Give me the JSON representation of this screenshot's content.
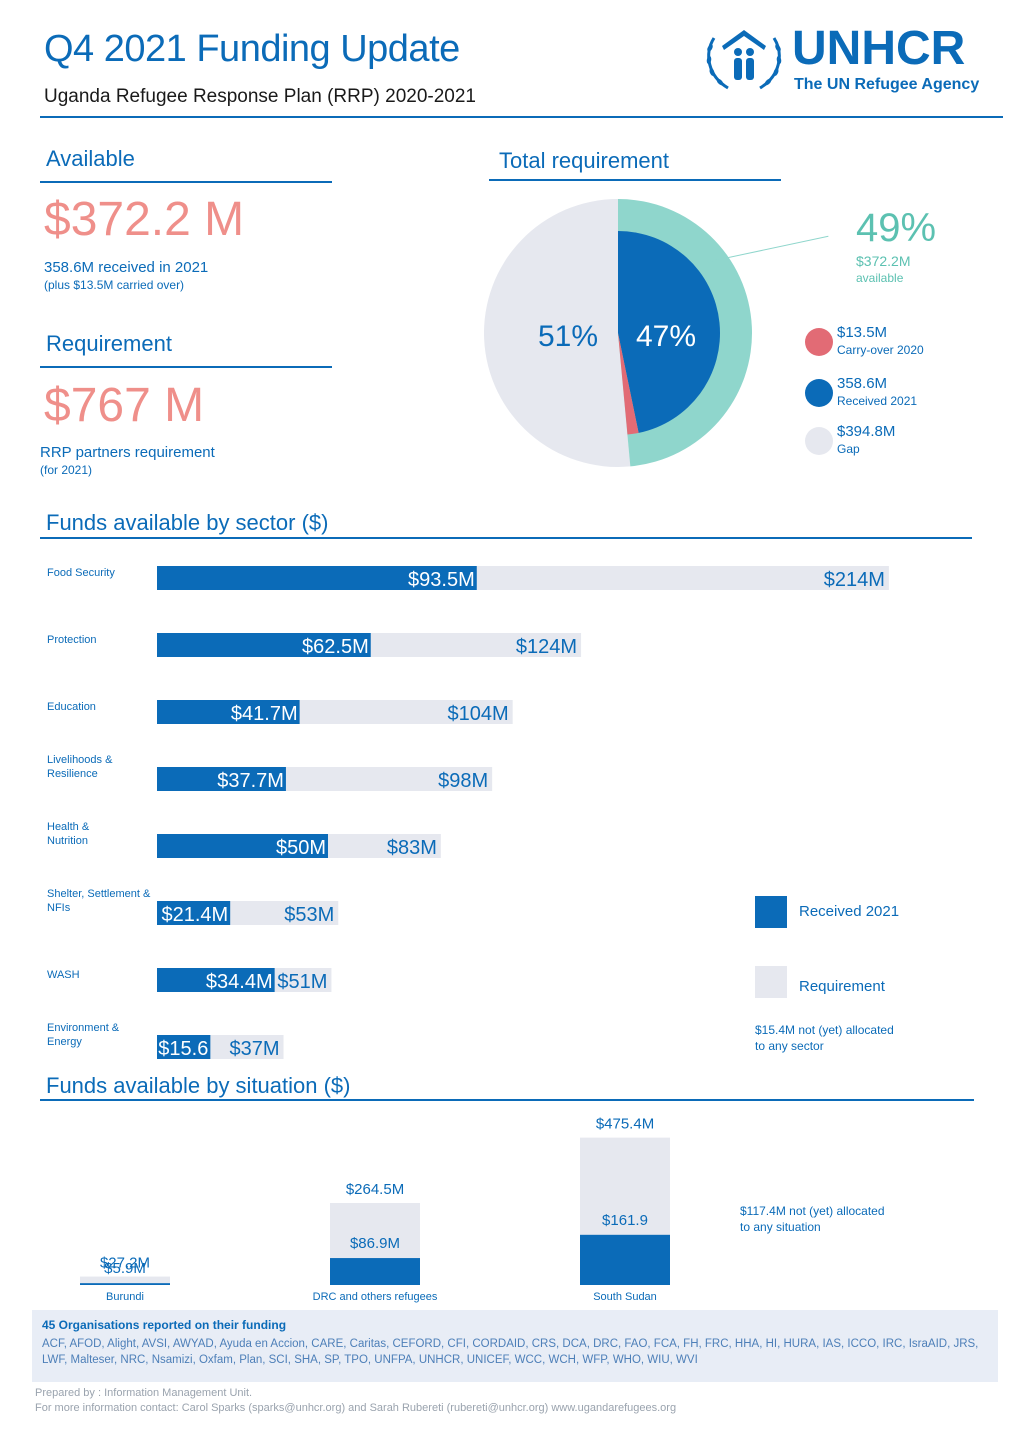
{
  "header": {
    "title": "Q4 2021 Funding Update",
    "subtitle": "Uganda Refugee Response Plan (RRP) 2020-2021",
    "logo_name": "UNHCR",
    "logo_tagline": "The UN Refugee Agency",
    "logo_icon": "unhcr-emblem-icon"
  },
  "available": {
    "heading": "Available",
    "amount": "$372.2 M",
    "line1": "358.6M received in 2021",
    "line2": "(plus $13.5M carried over)"
  },
  "requirement": {
    "heading": "Requirement",
    "amount": "$767 M",
    "line1": "RRP partners requirement",
    "line2": "(for 2021)"
  },
  "total_requirement": {
    "heading": "Total requirement",
    "callout_pct": "49%",
    "callout_amount": "$372.2M",
    "callout_label": "available",
    "legend": [
      {
        "amount": "$13.5M",
        "label": "Carry-over 2020",
        "color": "#e26b75"
      },
      {
        "amount": "358.6M",
        "label": "Received 2021",
        "color": "#0b6bb8"
      },
      {
        "amount": "$394.8M",
        "label": "Gap",
        "color": "#e6e8ef"
      }
    ]
  },
  "sector_section": {
    "heading": "Funds available by sector ($)",
    "legend_received": "Received 2021",
    "legend_requirement": "Requirement",
    "note_line1": "$15.4M not (yet) allocated",
    "note_line2": "to any sector"
  },
  "situation_section": {
    "heading": "Funds available by situation ($)",
    "note_line1": "$117.4M not (yet) allocated",
    "note_line2": "to any situation"
  },
  "footer": {
    "heading": "45 Organisations reported on their funding",
    "orgs": "ACF, AFOD, Alight, AVSI, AWYAD, Ayuda en Accion, CARE, Caritas, CEFORD, CFI, CORDAID, CRS, DCA, DRC, FAO, FCA, FH, FRC, HHA, HI, HURA, IAS, ICCO, IRC, IsraAID, JRS, LWF, Malteser, NRC, Nsamizi, Oxfam, Plan, SCI, SHA, SP, TPO, UNFPA, UNHCR, UNICEF, WCC, WCH, WFP, WHO, WIU, WVI",
    "prepared_by": "Prepared by : Information Management Unit.",
    "contact": "For more information contact: Carol Sparks (sparks@unhcr.org) and Sarah Rubereti (rubereti@unhcr.org) www.ugandarefugees.org"
  },
  "colors": {
    "blue": "#0b6bb8",
    "teal": "#8fd6cc",
    "gray": "#e6e8ef",
    "pink": "#e26b75",
    "salmon": "#ef8f8a"
  },
  "chart_data": [
    {
      "type": "pie",
      "title": "Total requirement",
      "slices": [
        {
          "label": "Gap",
          "value": 394.8,
          "pct_label": "51%"
        },
        {
          "label": "Received 2021",
          "value": 358.6,
          "pct_label": "47%"
        },
        {
          "label": "Carry-over 2020",
          "value": 13.5
        }
      ],
      "outer_ring": {
        "label": "available",
        "value": 372.2,
        "pct_label": "49%"
      }
    },
    {
      "type": "bar",
      "orientation": "horizontal",
      "title": "Funds available by sector ($)",
      "categories": [
        "Food Security",
        "Protection",
        "Education",
        "Livelihoods & Resilience",
        "Health & Nutrition",
        "Shelter, Settlement & NFIs",
        "WASH",
        "Environment & Energy"
      ],
      "category_lines": [
        [
          "Food Security"
        ],
        [
          "Protection"
        ],
        [
          "Education"
        ],
        [
          "Livelihoods &",
          "Resilience"
        ],
        [
          "Health &",
          "Nutrition"
        ],
        [
          "Shelter, Settlement &",
          "NFIs"
        ],
        [
          "WASH"
        ],
        [
          "Environment &",
          "Energy"
        ]
      ],
      "series": [
        {
          "name": "Received 2021",
          "values": [
            93.5,
            62.5,
            41.7,
            37.7,
            50,
            21.4,
            34.4,
            15.6
          ],
          "labels": [
            "$93.5M",
            "$62.5M",
            "$41.7M",
            "$37.7M",
            "$50M",
            "$21.4M",
            "$34.4M",
            "$15.6"
          ]
        },
        {
          "name": "Requirement",
          "values": [
            214,
            124,
            104,
            98,
            83,
            53,
            51,
            37
          ],
          "labels": [
            "$214M",
            "$124M",
            "$104M",
            "$98M",
            "$83M",
            "$53M",
            "$51M",
            "$37M"
          ]
        }
      ]
    },
    {
      "type": "bar",
      "title": "Funds available by situation ($)",
      "categories": [
        "Burundi",
        "DRC and others refugees",
        "South Sudan"
      ],
      "series": [
        {
          "name": "Received 2021",
          "values": [
            5.9,
            86.9,
            161.9
          ],
          "labels": [
            "$5.9M",
            "$86.9M",
            "$161.9"
          ]
        },
        {
          "name": "Requirement",
          "values": [
            27.2,
            264.5,
            475.4
          ],
          "labels": [
            "$27.2M",
            "$264.5M",
            "$475.4M"
          ]
        }
      ]
    }
  ]
}
